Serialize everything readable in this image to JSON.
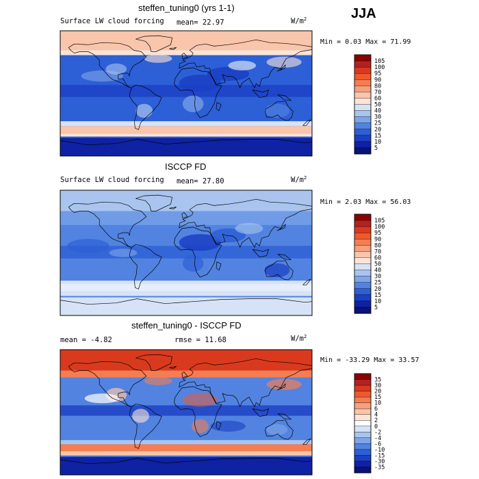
{
  "season": "JJA",
  "unit": "W/m",
  "unit_exp": "2",
  "panels": [
    {
      "title": "steffen_tuning0 (yrs 1-1)",
      "subtitle": "Surface LW cloud forcing",
      "stat_text": "mean=  22.97",
      "minmax": "Min =   0.03 Max =  71.99"
    },
    {
      "title": "ISCCP FD",
      "subtitle": "Surface LW cloud forcing",
      "stat_text": "mean=  27.80",
      "minmax": "Min =   2.03 Max =  56.03"
    },
    {
      "title": "steffen_tuning0 - ISCCP FD",
      "subtitle": "",
      "stat_text": "mean =  -4.82",
      "stat_text2": "rmse =  11.68",
      "minmax": "Min = -33.29 Max =  33.57"
    }
  ],
  "chart_data": [
    {
      "type": "heatmap",
      "title": "steffen_tuning0 (yrs 1-1)",
      "subtitle": "Surface LW cloud forcing",
      "mean": 22.97,
      "min": 0.03,
      "max": 71.99,
      "unit": "W/m2",
      "map": "global lat-lon cylindrical",
      "levels": [
        "105",
        "100",
        "95",
        "90",
        "80",
        "70",
        "60",
        "50",
        "40",
        "30",
        "25",
        "20",
        "15",
        "10",
        "5"
      ],
      "colors": [
        "#8b0000",
        "#b22222",
        "#d93a1e",
        "#ef5a2b",
        "#f47d52",
        "#f6a07c",
        "#f9c5ab",
        "#fbe4d6",
        "#d6e3f7",
        "#a9c4ee",
        "#7ea5e8",
        "#5283e0",
        "#2d5fd6",
        "#1b3fc4",
        "#0f22a3",
        "#07127a"
      ],
      "regional_pattern": {
        "high_latitudes": "50-70",
        "southern_ocean_band": "50-70",
        "tropical_oceans": "10-25",
        "subtropics": "5-20"
      }
    },
    {
      "type": "heatmap",
      "title": "ISCCP FD",
      "subtitle": "Surface LW cloud forcing",
      "mean": 27.8,
      "min": 2.03,
      "max": 56.03,
      "unit": "W/m2",
      "map": "global lat-lon cylindrical",
      "levels": [
        "105",
        "100",
        "95",
        "90",
        "80",
        "70",
        "60",
        "50",
        "40",
        "30",
        "25",
        "20",
        "15",
        "10",
        "5"
      ],
      "colors": [
        "#8b0000",
        "#b22222",
        "#d93a1e",
        "#ef5a2b",
        "#f47d52",
        "#f6a07c",
        "#f9c5ab",
        "#fbe4d6",
        "#d6e3f7",
        "#a9c4ee",
        "#7ea5e8",
        "#5283e0",
        "#2d5fd6",
        "#1b3fc4",
        "#0f22a3",
        "#07127a"
      ],
      "regional_pattern": {
        "high_latitudes": "30-40",
        "southern_ocean_band": "40-50",
        "tropical_oceans": "15-30",
        "subtropics": "10-25"
      }
    },
    {
      "type": "heatmap",
      "title": "steffen_tuning0 - ISCCP FD",
      "mean": -4.82,
      "rmse": 11.68,
      "min": -33.29,
      "max": 33.57,
      "unit": "W/m2",
      "map": "global lat-lon cylindrical",
      "levels": [
        "35",
        "30",
        "20",
        "15",
        "10",
        "6",
        "4",
        "2",
        "0",
        "-2",
        "-4",
        "-6",
        "-10",
        "-15",
        "-30",
        "-35"
      ],
      "colors": [
        "#8b0000",
        "#b22222",
        "#d93a1e",
        "#ef5a2b",
        "#f47d52",
        "#f6a07c",
        "#f9c5ab",
        "#fbe4d6",
        "#ffffff",
        "#d6e3f7",
        "#a9c4ee",
        "#7ea5e8",
        "#5283e0",
        "#2d5fd6",
        "#1b3fc4",
        "#0f22a3",
        "#07127a"
      ],
      "regional_pattern": {
        "high_latitudes": "15-30",
        "southern_ocean_band": "10-20",
        "tropical_oceans": "-10 to -20",
        "subtropics": "-5 to -15"
      }
    }
  ]
}
